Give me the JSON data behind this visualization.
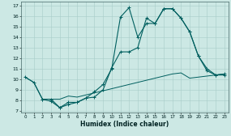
{
  "xlabel": "Humidex (Indice chaleur)",
  "bg_color": "#cce8e4",
  "grid_color": "#a8ccc8",
  "line_color": "#005f5f",
  "xlim_min": -0.5,
  "xlim_max": 23.5,
  "ylim_min": 6.8,
  "ylim_max": 17.4,
  "xticks": [
    0,
    1,
    2,
    3,
    4,
    5,
    6,
    7,
    8,
    9,
    10,
    11,
    12,
    13,
    14,
    15,
    16,
    17,
    18,
    19,
    20,
    21,
    22,
    23
  ],
  "yticks": [
    7,
    8,
    9,
    10,
    11,
    12,
    13,
    14,
    15,
    16,
    17
  ],
  "line1_x": [
    0,
    1,
    2,
    3,
    4,
    5,
    6,
    7,
    8,
    9,
    10,
    11,
    12,
    13,
    14,
    15,
    16,
    17,
    18,
    19,
    20,
    21,
    22,
    23
  ],
  "line1_y": [
    10.2,
    9.7,
    8.1,
    8.1,
    8.1,
    8.4,
    8.3,
    8.5,
    8.7,
    8.9,
    9.1,
    9.3,
    9.5,
    9.7,
    9.9,
    10.1,
    10.3,
    10.5,
    10.6,
    10.1,
    10.2,
    10.3,
    10.4,
    10.5
  ],
  "line2_x": [
    0,
    1,
    2,
    3,
    4,
    5,
    6,
    7,
    8,
    9,
    10,
    11,
    12,
    13,
    14,
    15,
    16,
    17,
    18,
    19,
    20,
    21,
    22,
    23
  ],
  "line2_y": [
    10.2,
    9.7,
    8.1,
    7.9,
    7.3,
    7.6,
    7.8,
    8.2,
    8.8,
    9.5,
    11.0,
    15.9,
    16.8,
    14.0,
    15.3,
    15.3,
    16.7,
    16.7,
    15.8,
    14.5,
    12.2,
    11.0,
    10.4,
    10.5
  ],
  "line3_x": [
    2,
    3,
    4,
    5,
    6,
    7,
    8,
    9,
    10,
    11,
    12,
    13,
    14,
    15,
    16,
    17,
    18,
    19,
    20,
    21,
    22,
    23
  ],
  "line3_y": [
    8.1,
    8.1,
    7.3,
    7.8,
    7.8,
    8.2,
    8.3,
    9.0,
    11.1,
    12.6,
    12.6,
    13.0,
    15.8,
    15.3,
    16.7,
    16.7,
    15.8,
    14.5,
    12.2,
    10.8,
    10.4,
    10.4
  ]
}
